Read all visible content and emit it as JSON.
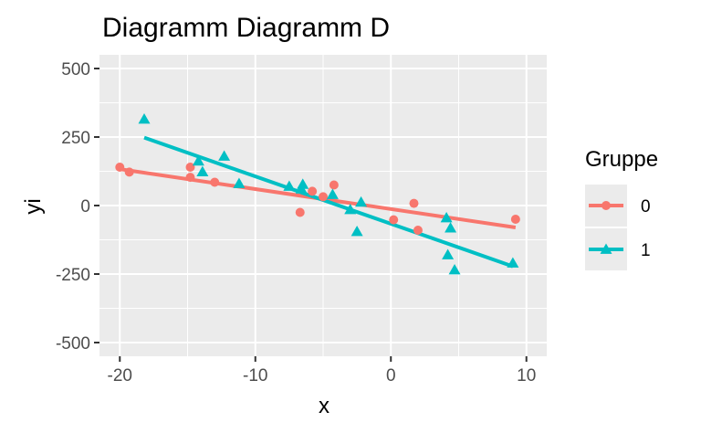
{
  "chart_data": {
    "type": "scatter",
    "title": "Diagramm Diagramm D",
    "xlabel": "x",
    "ylabel": "yi",
    "xlim": [
      -21.5,
      11.5
    ],
    "ylim": [
      -550,
      550
    ],
    "x_ticks": [
      -20,
      -10,
      0,
      10
    ],
    "x_tick_labels": [
      "-20",
      "-10",
      "0",
      "10"
    ],
    "y_ticks": [
      -500,
      -250,
      0,
      250,
      500
    ],
    "y_tick_labels": [
      "-500",
      "-250",
      "0",
      "250",
      "500"
    ],
    "grid": true,
    "panel_background": "#ebebeb",
    "legend": {
      "title": "Gruppe",
      "placement": "right"
    },
    "series": [
      {
        "name": "0",
        "color": "#f8766d",
        "marker": "circle",
        "points": [
          {
            "x": -20.0,
            "y": 140
          },
          {
            "x": -19.3,
            "y": 122
          },
          {
            "x": -14.8,
            "y": 140
          },
          {
            "x": -14.8,
            "y": 103
          },
          {
            "x": -13.0,
            "y": 85
          },
          {
            "x": -6.7,
            "y": -25
          },
          {
            "x": -5.8,
            "y": 52
          },
          {
            "x": -5.0,
            "y": 32
          },
          {
            "x": -4.2,
            "y": 75
          },
          {
            "x": 0.2,
            "y": -52
          },
          {
            "x": 1.7,
            "y": 8
          },
          {
            "x": 2.0,
            "y": -90
          },
          {
            "x": 9.2,
            "y": -50
          }
        ],
        "fit": {
          "x": [
            -20.0,
            9.2
          ],
          "y": [
            133,
            -80
          ]
        }
      },
      {
        "name": "1",
        "color": "#00bfc4",
        "marker": "triangle",
        "points": [
          {
            "x": -18.2,
            "y": 315
          },
          {
            "x": -14.2,
            "y": 162
          },
          {
            "x": -13.9,
            "y": 123
          },
          {
            "x": -12.3,
            "y": 180
          },
          {
            "x": -11.2,
            "y": 80
          },
          {
            "x": -7.5,
            "y": 70
          },
          {
            "x": -6.6,
            "y": 60
          },
          {
            "x": -6.5,
            "y": 77
          },
          {
            "x": -4.3,
            "y": 40
          },
          {
            "x": -3.0,
            "y": -15
          },
          {
            "x": -2.5,
            "y": -95
          },
          {
            "x": -2.2,
            "y": 12
          },
          {
            "x": 4.1,
            "y": -45
          },
          {
            "x": 4.2,
            "y": -180
          },
          {
            "x": 4.4,
            "y": -82
          },
          {
            "x": 4.7,
            "y": -235
          },
          {
            "x": 9.0,
            "y": -210
          }
        ],
        "fit": {
          "x": [
            -18.2,
            9.0
          ],
          "y": [
            248,
            -222
          ]
        }
      }
    ]
  }
}
